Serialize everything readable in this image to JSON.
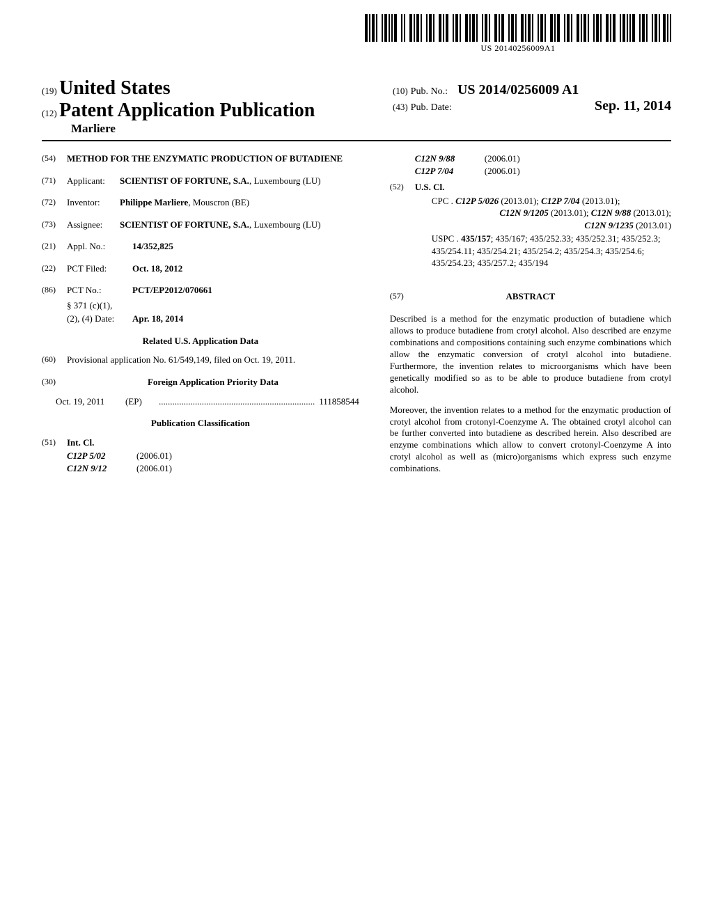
{
  "barcode_label": "US 20140256009A1",
  "header": {
    "tag19": "(19)",
    "country": "United States",
    "tag12": "(12)",
    "doc_type": "Patent Application Publication",
    "author_line": "Marliere",
    "tag10": "(10)",
    "pub_no_label": "Pub. No.:",
    "pub_no": "US 2014/0256009 A1",
    "tag43": "(43)",
    "pub_date_label": "Pub. Date:",
    "pub_date": "Sep. 11, 2014"
  },
  "left": {
    "f54_tag": "(54)",
    "f54_title": "METHOD FOR THE ENZYMATIC PRODUCTION OF BUTADIENE",
    "f71_tag": "(71)",
    "f71_label": "Applicant:",
    "f71_name": "SCIENTIST OF FORTUNE, S.A.",
    "f71_loc": ", Luxembourg (LU)",
    "f72_tag": "(72)",
    "f72_label": "Inventor:",
    "f72_name": "Philippe Marliere",
    "f72_loc": ", Mouscron (BE)",
    "f73_tag": "(73)",
    "f73_label": "Assignee:",
    "f73_name": "SCIENTIST OF FORTUNE, S.A.",
    "f73_loc": ", Luxembourg (LU)",
    "f21_tag": "(21)",
    "f21_label": "Appl. No.:",
    "f21_val": "14/352,825",
    "f22_tag": "(22)",
    "f22_label": "PCT Filed:",
    "f22_val": "Oct. 18, 2012",
    "f86_tag": "(86)",
    "f86_label": "PCT No.:",
    "f86_val": "PCT/EP2012/070661",
    "f86_371a": "§ 371 (c)(1),",
    "f86_371b": "(2), (4) Date:",
    "f86_371date": "Apr. 18, 2014",
    "related_title": "Related U.S. Application Data",
    "f60_tag": "(60)",
    "f60_text": "Provisional application No. 61/549,149, filed on Oct. 19, 2011.",
    "f30_tag": "(30)",
    "f30_title": "Foreign Application Priority Data",
    "priority_date": "Oct. 19, 2011",
    "priority_ctry": "(EP)",
    "priority_num": "111858544",
    "pub_class_title": "Publication Classification",
    "f51_tag": "(51)",
    "f51_label": "Int. Cl.",
    "int_cl": [
      {
        "code": "C12P 5/02",
        "year": "(2006.01)"
      },
      {
        "code": "C12N 9/12",
        "year": "(2006.01)"
      }
    ]
  },
  "right": {
    "int_cl_cont": [
      {
        "code": "C12N 9/88",
        "year": "(2006.01)"
      },
      {
        "code": "C12P 7/04",
        "year": "(2006.01)"
      }
    ],
    "f52_tag": "(52)",
    "f52_label": "U.S. Cl.",
    "cpc_prefix": "CPC  . ",
    "cpc_line1_a": "C12P 5/026",
    "cpc_line1_a2": " (2013.01); ",
    "cpc_line1_b": "C12P 7/04",
    "cpc_line1_b2": " (2013.01);",
    "cpc_line2_a": "C12N 9/1205",
    "cpc_line2_a2": " (2013.01); ",
    "cpc_line2_b": "C12N 9/88",
    "cpc_line2_b2": " (2013.01);",
    "cpc_line3_a": "C12N 9/1235",
    "cpc_line3_a2": " (2013.01)",
    "uspc_prefix": "USPC   . ",
    "uspc_bold": "435/157",
    "uspc_rest": "; 435/167; 435/252.33; 435/252.31; 435/252.3; 435/254.11; 435/254.21; 435/254.2; 435/254.3; 435/254.6; 435/254.23; 435/257.2; 435/194",
    "f57_tag": "(57)",
    "abstract_label": "ABSTRACT",
    "abstract_p1": "Described is a method for the enzymatic production of butadiene which allows to produce butadiene from crotyl alcohol. Also described are enzyme combinations and compositions containing such enzyme combinations which allow the enzymatic conversion of crotyl alcohol into butadiene. Furthermore, the invention relates to microorganisms which have been genetically modified so as to be able to produce butadiene from crotyl alcohol.",
    "abstract_p2": "Moreover, the invention relates to a method for the enzymatic production of crotyl alcohol from crotonyl-Coenzyme A. The obtained crotyl alcohol can be further converted into butadiene as described herein. Also described are enzyme combinations which allow to convert crotonyl-Coenzyme A into crotyl alcohol as well as (micro)organisms which express such enzyme combinations."
  }
}
